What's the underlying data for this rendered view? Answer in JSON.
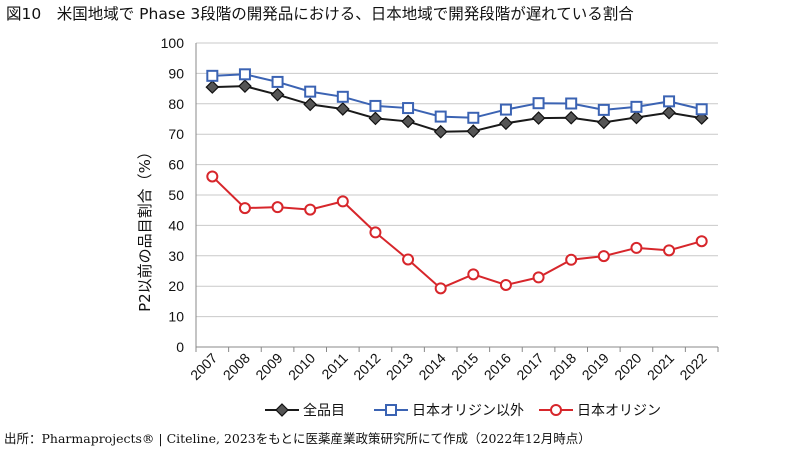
{
  "title": "図10　米国地域で Phase 3段階の開発品における、日本地域で開発段階が遅れている割合",
  "footer": "出所：Pharmaprojects® | Citeline, 2023をもとに医薬産業政策研究所にて作成（2022年12月時点）",
  "chart_data": {
    "type": "line",
    "title": "図10　米国地域で Phase 3段階の開発品における、日本地域で開発段階が遅れている割合",
    "xlabel": "",
    "ylabel": "P2以前の品目割合（%）",
    "ylim": [
      0,
      100
    ],
    "yticks": [
      0,
      10,
      20,
      30,
      40,
      50,
      60,
      70,
      80,
      90,
      100
    ],
    "categories": [
      "2007",
      "2008",
      "2009",
      "2010",
      "2011",
      "2012",
      "2013",
      "2014",
      "2015",
      "2016",
      "2017",
      "2018",
      "2019",
      "2020",
      "2021",
      "2022"
    ],
    "legend_position": "bottom",
    "series": [
      {
        "name": "全品目",
        "marker": "diamond",
        "color": "#1a1a1a",
        "values": [
          85.5,
          85.8,
          83.0,
          79.8,
          78.3,
          75.2,
          74.2,
          70.8,
          71.0,
          73.6,
          75.3,
          75.4,
          73.9,
          75.5,
          77.1,
          75.3
        ]
      },
      {
        "name": "日本オリジン以外",
        "marker": "square",
        "color": "#3b63b3",
        "values": [
          89.2,
          89.7,
          87.2,
          84.0,
          82.3,
          79.3,
          78.6,
          75.8,
          75.4,
          78.1,
          80.2,
          80.1,
          78.0,
          79.0,
          80.8,
          78.2
        ]
      },
      {
        "name": "日本オリジン",
        "marker": "circle",
        "color": "#d7262b",
        "values": [
          56.1,
          45.7,
          46.0,
          45.2,
          47.9,
          37.7,
          28.8,
          19.3,
          23.9,
          20.4,
          22.9,
          28.7,
          29.9,
          32.6,
          31.8,
          34.8
        ]
      }
    ]
  }
}
